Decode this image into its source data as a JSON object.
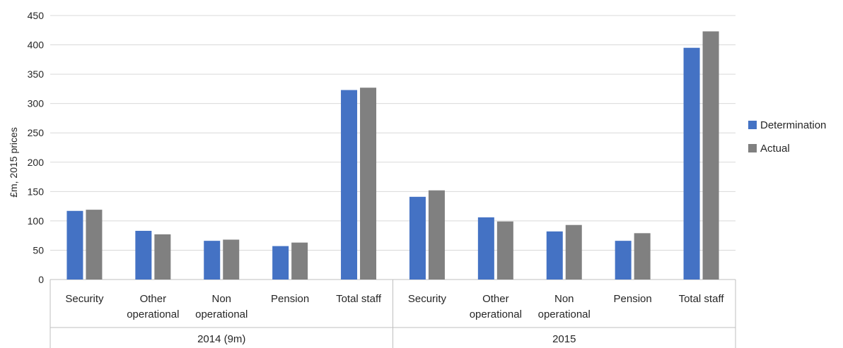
{
  "chart_data": {
    "type": "bar",
    "title": "",
    "ylabel": "£m, 2015 prices",
    "xlabel": "",
    "ylim": [
      0,
      450
    ],
    "ytick_step": 50,
    "grid": true,
    "legend_position": "right",
    "groups": [
      {
        "label": "2014 (9m)",
        "categories": [
          "Security",
          "Other operational",
          "Non operational",
          "Pension",
          "Total staff"
        ]
      },
      {
        "label": "2015",
        "categories": [
          "Security",
          "Other operational",
          "Non operational",
          "Pension",
          "Total staff"
        ]
      }
    ],
    "categories": [
      [
        "Security"
      ],
      [
        "Other",
        "operational"
      ],
      [
        "Non",
        "operational"
      ],
      [
        "Pension"
      ],
      [
        "Total staff"
      ],
      [
        "Security"
      ],
      [
        "Other",
        "operational"
      ],
      [
        "Non",
        "operational"
      ],
      [
        "Pension"
      ],
      [
        "Total staff"
      ]
    ],
    "series": [
      {
        "name": "Determination",
        "color": "#4472C4",
        "values": [
          117,
          83,
          66,
          57,
          323,
          141,
          106,
          82,
          66,
          395
        ]
      },
      {
        "name": "Actual",
        "color": "#808080",
        "values": [
          119,
          77,
          68,
          63,
          327,
          152,
          99,
          93,
          79,
          423
        ]
      }
    ]
  }
}
